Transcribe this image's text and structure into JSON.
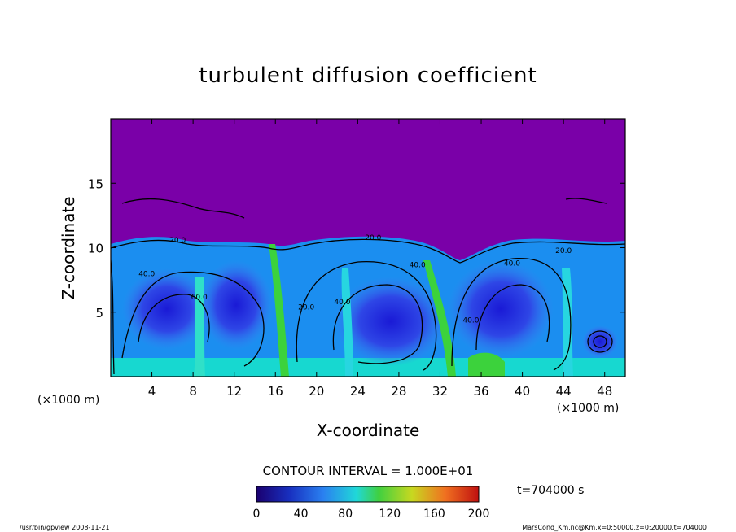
{
  "chart_data": {
    "type": "heatmap",
    "title": "turbulent diffusion coefficient",
    "xlabel": "X-coordinate",
    "ylabel": "Z-coordinate",
    "x_unit": "(×1000 m)",
    "xlim": [
      0,
      50
    ],
    "ylim": [
      0,
      20
    ],
    "x_ticks": [
      4,
      8,
      12,
      16,
      20,
      24,
      28,
      32,
      36,
      40,
      44,
      48
    ],
    "y_ticks": [
      5,
      10,
      15
    ],
    "contour_interval_text": "CONTOUR INTERVAL = 1.000E+01",
    "time_text": "t=704000 s",
    "colorbar": {
      "min": 0,
      "max": 200,
      "ticks": [
        0,
        40,
        80,
        120,
        160,
        200
      ]
    },
    "contour_labels": [
      {
        "x": 3.5,
        "z": 7.8,
        "text": "40.0"
      },
      {
        "x": 6.5,
        "z": 10.4,
        "text": "20.0"
      },
      {
        "x": 8.6,
        "z": 6.0,
        "text": "60.0"
      },
      {
        "x": 19.0,
        "z": 5.2,
        "text": "20.0"
      },
      {
        "x": 22.5,
        "z": 5.6,
        "text": "40.0"
      },
      {
        "x": 25.5,
        "z": 10.6,
        "text": "20.0"
      },
      {
        "x": 29.8,
        "z": 8.5,
        "text": "40.0"
      },
      {
        "x": 35.0,
        "z": 4.2,
        "text": "40.0"
      },
      {
        "x": 39.0,
        "z": 8.6,
        "text": "40.0"
      },
      {
        "x": 44.0,
        "z": 9.6,
        "text": "20.0"
      }
    ],
    "eddies": [
      {
        "x": 5.5,
        "z": 5.5,
        "label": "low"
      },
      {
        "x": 11.0,
        "z": 5.0,
        "label": "low"
      },
      {
        "x": 25.5,
        "z": 4.5,
        "label": "low"
      },
      {
        "x": 37.5,
        "z": 5.0,
        "label": "low"
      },
      {
        "x": 47.0,
        "z": 2.7,
        "label": "low"
      }
    ],
    "colors": {
      "background": "#7a00a8",
      "low": "#2a2ad8",
      "mid": "#1fb0ff",
      "high": "#17e0d0",
      "peak": "#3cd23c"
    }
  },
  "footer": {
    "left": "/usr/bin/gpview   2008-11-21",
    "right": "MarsCond_Km.nc@Km,x=0:50000,z=0:20000,t=704000"
  }
}
